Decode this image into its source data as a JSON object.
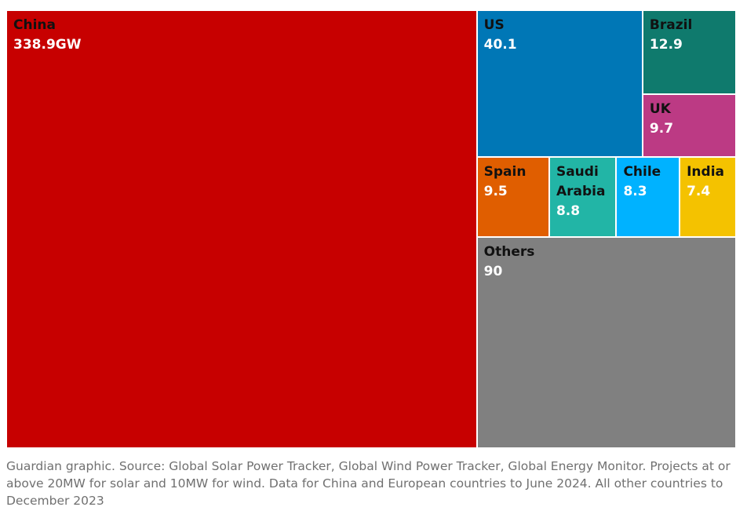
{
  "chart_data": {
    "type": "treemap",
    "unit": "GW",
    "items": [
      {
        "name": "China",
        "value": 338.9,
        "label": "338.9GW",
        "color": "#c70000",
        "text_color": "#ffffff"
      },
      {
        "name": "US",
        "value": 40.1,
        "label": "40.1",
        "color": "#0077b6",
        "text_color": "#ffffff"
      },
      {
        "name": "Brazil",
        "value": 12.9,
        "label": "12.9",
        "color": "#0f7a6d",
        "text_color": "#ffffff"
      },
      {
        "name": "UK",
        "value": 9.7,
        "label": "9.7",
        "color": "#bc3a84",
        "text_color": "#ffffff"
      },
      {
        "name": "Spain",
        "value": 9.5,
        "label": "9.5",
        "color": "#e05e00",
        "text_color": "#ffffff"
      },
      {
        "name": "Saudi\nArabia",
        "value": 8.8,
        "label": "8.8",
        "color": "#22b5a6",
        "text_color": "#ffffff"
      },
      {
        "name": "Chile",
        "value": 8.3,
        "label": "8.3",
        "color": "#00b2ff",
        "text_color": "#ffffff"
      },
      {
        "name": "India",
        "value": 7.4,
        "label": "7.4",
        "color": "#f4c200",
        "text_color": "#ffffff"
      },
      {
        "name": "Others",
        "value": 90,
        "label": "90",
        "color": "#808080",
        "text_color": "#ffffff"
      }
    ]
  },
  "footer": {
    "source": "Guardian graphic. Source: Global Solar Power Tracker, Global Wind Power Tracker, Global Energy Monitor. Projects at or above 20MW for solar and 10MW for wind. Data for China and European countries to June 2024. All other countries to December 2023"
  }
}
